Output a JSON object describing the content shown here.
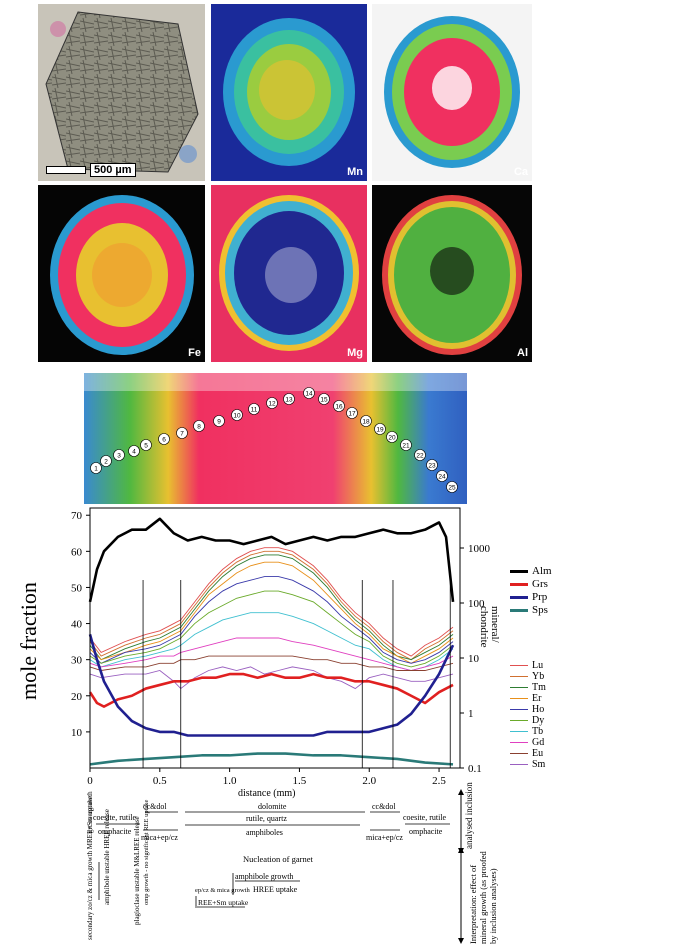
{
  "map_panels": [
    {
      "label": "",
      "scale_text": "500 µm"
    },
    {
      "label": "Mn"
    },
    {
      "label": "Ca"
    },
    {
      "label": "Fe"
    },
    {
      "label": "Mg"
    },
    {
      "label": "Al"
    }
  ],
  "traverse_points": [
    "1",
    "2",
    "3",
    "4",
    "5",
    "6",
    "7",
    "8",
    "9",
    "10",
    "11",
    "12",
    "13",
    "14",
    "15",
    "16",
    "17",
    "18",
    "19",
    "20",
    "21",
    "22",
    "23",
    "24",
    "25"
  ],
  "chart_data": {
    "type": "line",
    "xlabel": "distance (mm)",
    "ylabel_left": "mole fraction",
    "ylabel_right": "mineral/ chondrite",
    "x_ticks": [
      "0",
      "0.5",
      "1.0",
      "1.5",
      "2.0",
      "2.5"
    ],
    "y_ticks_left": [
      "10",
      "20",
      "30",
      "40",
      "50",
      "60",
      "70"
    ],
    "y_ticks_right": [
      "0.1",
      "1",
      "10",
      "100",
      "1000"
    ],
    "xlim": [
      0,
      2.65
    ],
    "ylim_left": [
      0,
      72
    ],
    "major_series": [
      {
        "name": "Alm",
        "color": "#000000",
        "x": [
          0,
          0.05,
          0.1,
          0.2,
          0.3,
          0.4,
          0.5,
          0.6,
          0.7,
          0.8,
          0.9,
          1.0,
          1.1,
          1.2,
          1.3,
          1.4,
          1.5,
          1.6,
          1.7,
          1.8,
          1.9,
          2.0,
          2.1,
          2.2,
          2.3,
          2.4,
          2.5,
          2.55,
          2.6
        ],
        "y": [
          46,
          55,
          60,
          64,
          66,
          66,
          69,
          65,
          63,
          64,
          63,
          63,
          62,
          63,
          64,
          62,
          63,
          64,
          63,
          64,
          64,
          65,
          66,
          65,
          65,
          66,
          68,
          64,
          46
        ]
      },
      {
        "name": "Grs",
        "color": "#e02020",
        "x": [
          0,
          0.05,
          0.1,
          0.2,
          0.3,
          0.4,
          0.5,
          0.6,
          0.7,
          0.8,
          0.9,
          1.0,
          1.1,
          1.2,
          1.3,
          1.4,
          1.5,
          1.6,
          1.7,
          1.8,
          1.9,
          2.0,
          2.1,
          2.2,
          2.3,
          2.4,
          2.5,
          2.6
        ],
        "y": [
          21,
          18,
          17,
          19,
          20,
          22,
          23,
          24,
          24,
          25,
          25,
          26,
          26,
          25,
          26,
          25,
          25,
          26,
          25,
          25,
          24,
          24,
          23,
          22,
          20,
          18,
          21,
          23
        ]
      },
      {
        "name": "Prp",
        "color": "#202090",
        "x": [
          0,
          0.05,
          0.1,
          0.2,
          0.3,
          0.4,
          0.5,
          0.6,
          0.7,
          0.8,
          0.9,
          1.0,
          1.1,
          1.2,
          1.3,
          1.4,
          1.5,
          1.6,
          1.7,
          1.8,
          1.9,
          2.0,
          2.1,
          2.2,
          2.3,
          2.4,
          2.5,
          2.6
        ],
        "y": [
          37,
          30,
          24,
          17,
          13,
          11,
          10,
          10,
          9,
          9,
          9,
          9,
          9,
          9,
          9,
          9,
          9,
          9,
          10,
          10,
          10,
          10,
          11,
          12,
          15,
          20,
          26,
          34
        ]
      },
      {
        "name": "Sps",
        "color": "#2a7a78",
        "x": [
          0,
          0.1,
          0.2,
          0.4,
          0.6,
          0.8,
          1.0,
          1.2,
          1.4,
          1.6,
          1.8,
          2.0,
          2.2,
          2.4,
          2.6
        ],
        "y": [
          1,
          1.5,
          2,
          2.5,
          3,
          3.5,
          3.5,
          4,
          4,
          3.5,
          3.5,
          3,
          2.5,
          1.5,
          1
        ]
      }
    ],
    "ree_series_names": [
      "Lu",
      "Yb",
      "Tm",
      "Er",
      "Ho",
      "Dy",
      "Tb",
      "Gd",
      "Eu",
      "Sm"
    ],
    "ree_colors": [
      "#e05050",
      "#d07030",
      "#2e7d32",
      "#e8901a",
      "#3a3aaa",
      "#6aaa2a",
      "#40c0d0",
      "#e040c0",
      "#8a4030",
      "#9a60c0"
    ],
    "ree_x": [
      0,
      0.08,
      0.25,
      0.4,
      0.5,
      0.6,
      0.65,
      0.75,
      0.85,
      0.95,
      1.05,
      1.15,
      1.25,
      1.35,
      1.45,
      1.6,
      1.7,
      1.8,
      1.9,
      2.0,
      2.1,
      2.2,
      2.3,
      2.4,
      2.5,
      2.6
    ],
    "ree_y": [
      [
        36,
        32,
        35,
        37,
        38,
        40,
        41,
        46,
        51,
        55,
        58,
        60,
        61,
        61,
        60,
        56,
        52,
        47,
        43,
        40,
        36,
        33,
        31,
        34,
        36,
        39
      ],
      [
        35,
        31,
        34,
        36,
        37,
        39,
        40,
        45,
        50,
        54,
        57,
        59,
        60,
        60,
        59,
        55,
        51,
        46,
        42,
        39,
        35,
        32,
        30,
        33,
        35,
        38
      ],
      [
        34,
        30,
        33,
        35,
        36,
        38,
        39,
        44,
        49,
        53,
        56,
        58,
        59,
        59,
        58,
        54,
        50,
        45,
        41,
        38,
        34,
        31,
        30,
        32,
        34,
        37
      ],
      [
        33,
        30,
        32,
        34,
        35,
        37,
        38,
        43,
        48,
        51,
        54,
        56,
        57,
        57,
        56,
        52,
        48,
        44,
        40,
        37,
        33,
        31,
        29,
        31,
        33,
        36
      ],
      [
        32,
        29,
        32,
        33,
        34,
        36,
        37,
        42,
        46,
        49,
        51,
        52,
        53,
        53,
        52,
        49,
        46,
        42,
        39,
        36,
        32,
        30,
        29,
        30,
        32,
        35
      ],
      [
        31,
        29,
        31,
        32,
        33,
        35,
        36,
        40,
        43,
        45,
        47,
        48,
        49,
        49,
        48,
        46,
        43,
        40,
        37,
        35,
        31,
        29,
        28,
        29,
        31,
        34
      ],
      [
        30,
        28,
        30,
        31,
        32,
        33,
        34,
        37,
        39,
        41,
        42,
        43,
        43,
        43,
        42,
        40,
        38,
        36,
        34,
        33,
        30,
        28,
        27,
        28,
        30,
        33
      ],
      [
        29,
        28,
        29,
        30,
        31,
        31,
        32,
        33,
        34,
        35,
        36,
        36,
        36,
        36,
        35,
        34,
        33,
        32,
        31,
        30,
        29,
        28,
        27,
        28,
        29,
        31
      ],
      [
        28,
        27,
        28,
        28,
        29,
        29,
        30,
        30,
        31,
        31,
        31,
        31,
        31,
        31,
        31,
        30,
        30,
        29,
        29,
        28,
        28,
        27,
        27,
        27,
        28,
        29
      ],
      [
        26,
        25,
        26,
        26,
        27,
        24,
        22,
        25,
        27,
        28,
        27,
        28,
        26,
        27,
        28,
        27,
        25,
        24,
        22,
        25,
        26,
        25,
        24,
        24,
        25,
        26
      ]
    ],
    "vertical_lines_mm": [
      0.38,
      0.65,
      1.95,
      2.17,
      2.58
    ]
  },
  "annotations": {
    "grt_overgrowth": "grt overgrowth",
    "secondary": "secondary zo/cz & mica growth MREE+Sm uptake",
    "amph_hree": "amphibole unstable HREE release",
    "plag": "plagioclase unstable M&LREE release",
    "omp_growth": "omp growth - no significant REE uptake",
    "coesite_left": "coesite, rutile",
    "omphacite_left": "omphacite",
    "ccdol_left": "cc&dol",
    "dolomite": "dolomite",
    "ccdol_right": "cc&dol",
    "micaep_left": "mica+ep/cz",
    "rutile_quartz": "rutile, quartz",
    "amphiboles": "amphiboles",
    "micaep_right": "mica+ep/cz",
    "coesite_right": "coesite, rutile",
    "omphacite_right": "omphacite",
    "analysed_inclusion": "analysed inclusion",
    "nucleation": "Nucleation of garnet",
    "amph_growth": "amphibole growth",
    "hree_uptake": "HREE uptake",
    "epcz_mica": "ep/cz & mica growth",
    "ree_sm": "REE+Sm uptake",
    "interpretation": "Interpretation: effect of mineral growth (as proofed by inclusion analyses)"
  }
}
